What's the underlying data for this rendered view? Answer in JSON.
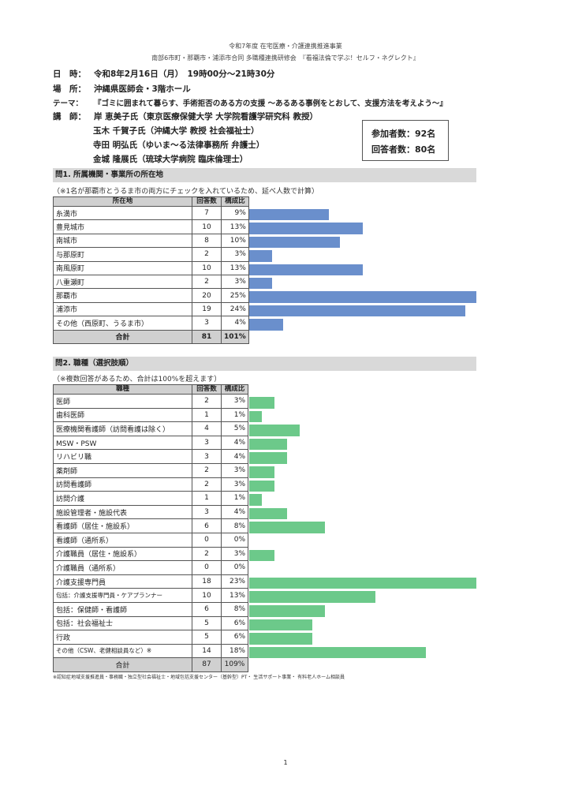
{
  "header": {
    "line1": "令和7年度 在宅医療・介護連携推進事業",
    "line2": "南部6市町・那覇市・浦添市合同 多職種連携研修会　『看福法倫で学ぶ！セルフ・ネグレクト』"
  },
  "info": {
    "date_label": "日　時：",
    "date": "令和8年2月16日（月）　19時00分～21時30分",
    "place_label": "場　所：",
    "place": "沖縄県医師会・3階ホール",
    "theme_label": "テーマ：",
    "theme": "『ゴミに囲まれて暮らす、手術拒否のある方の支援 ～あるある事例をとおして、支援方法を考えよう～』",
    "lecturer_label": "講　師：",
    "lecturers": [
      "岸 恵美子氏（東京医療保健大学 大学院看護学研究科 教授）",
      "玉木 千賀子氏（沖縄大学 教授 社会福祉士）",
      "寺田 明弘氏（ゆいま～る法律事務所 弁護士）",
      "金城 隆展氏（琉球大学病院 臨床倫理士）"
    ]
  },
  "counts": {
    "participants": "参加者数：92名",
    "respondents": "回答者数：80名"
  },
  "q1": {
    "title": "問1. 所属機関・事業所の所在地",
    "note": "（※1名が那覇市とうるま市の両方にチェックを入れているため、延べ人数で計算）",
    "headers": [
      "所在地",
      "回答数",
      "構成比"
    ],
    "bar_color": "#6a8fcc",
    "rows": [
      {
        "label": "糸満市",
        "count": "7",
        "pct": "9%",
        "value": 7
      },
      {
        "label": "豊見城市",
        "count": "10",
        "pct": "13%",
        "value": 10
      },
      {
        "label": "南城市",
        "count": "8",
        "pct": "10%",
        "value": 8
      },
      {
        "label": "与那原町",
        "count": "2",
        "pct": "3%",
        "value": 2
      },
      {
        "label": "南風原町",
        "count": "10",
        "pct": "13%",
        "value": 10
      },
      {
        "label": "八重瀬町",
        "count": "2",
        "pct": "3%",
        "value": 2
      },
      {
        "label": "那覇市",
        "count": "20",
        "pct": "25%",
        "value": 20
      },
      {
        "label": "浦添市",
        "count": "19",
        "pct": "24%",
        "value": 19
      },
      {
        "label": "その他（西原町、うるま市）",
        "count": "3",
        "pct": "4%",
        "value": 3
      }
    ],
    "total": {
      "label": "合計",
      "count": "81",
      "pct": "101%"
    }
  },
  "q2": {
    "title": "問2. 職種（選択肢順）",
    "note": "（※複数回答があるため、合計は100%を超えます）",
    "headers": [
      "職種",
      "回答数",
      "構成比"
    ],
    "bar_color": "#6cc98a",
    "rows": [
      {
        "label": "医師",
        "count": "2",
        "pct": "3%",
        "value": 2
      },
      {
        "label": "歯科医師",
        "count": "1",
        "pct": "1%",
        "value": 1
      },
      {
        "label": "医療機関看護師（訪問看護は除く）",
        "count": "4",
        "pct": "5%",
        "value": 4
      },
      {
        "label": "MSW・PSW",
        "count": "3",
        "pct": "4%",
        "value": 3
      },
      {
        "label": "リハビリ職",
        "count": "3",
        "pct": "4%",
        "value": 3
      },
      {
        "label": "薬剤師",
        "count": "2",
        "pct": "3%",
        "value": 2
      },
      {
        "label": "訪問看護師",
        "count": "2",
        "pct": "3%",
        "value": 2
      },
      {
        "label": "訪問介護",
        "count": "1",
        "pct": "1%",
        "value": 1
      },
      {
        "label": "施設管理者・施設代表",
        "count": "3",
        "pct": "4%",
        "value": 3
      },
      {
        "label": "看護師（居住・施設系）",
        "count": "6",
        "pct": "8%",
        "value": 6
      },
      {
        "label": "看護師（通所系）",
        "count": "0",
        "pct": "0%",
        "value": 0
      },
      {
        "label": "介護職員（居住・施設系）",
        "count": "2",
        "pct": "3%",
        "value": 2
      },
      {
        "label": "介護職員（通所系）",
        "count": "0",
        "pct": "0%",
        "value": 0
      },
      {
        "label": "介護支援専門員",
        "count": "18",
        "pct": "23%",
        "value": 18
      },
      {
        "label": "包括：介護支援専門員・ケアプランナー",
        "count": "10",
        "pct": "13%",
        "value": 10
      },
      {
        "label": "包括：保健師・看護師",
        "count": "6",
        "pct": "8%",
        "value": 6
      },
      {
        "label": "包括：社会福祉士",
        "count": "5",
        "pct": "6%",
        "value": 5
      },
      {
        "label": "行政",
        "count": "5",
        "pct": "6%",
        "value": 5
      },
      {
        "label": "その他（CSW、老健相談員など）※",
        "count": "14",
        "pct": "18%",
        "value": 14
      }
    ],
    "total": {
      "label": "合計",
      "count": "87",
      "pct": "109%"
    }
  },
  "footnote": "※認知症地域支援推進員・事務職・独立型社会福祉士・地域包括支援センター（基幹型）PT・ 生活サポート事業・ 有料老人ホーム相談員",
  "page_number": "1"
}
